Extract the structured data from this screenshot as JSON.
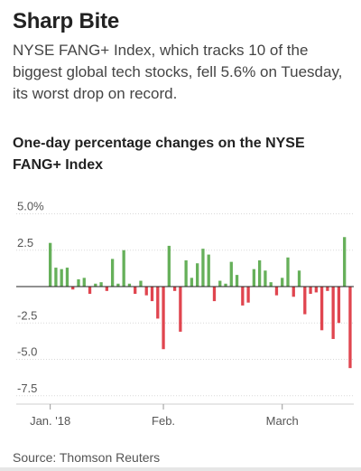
{
  "header": {
    "title": "Sharp Bite",
    "subtitle": "NYSE FANG+ Index, which tracks 10 of the biggest global tech stocks, fell 5.6% on Tuesday, its worst drop on record."
  },
  "chart_title": "One-day percentage changes on the NYSE FANG+ Index",
  "source": "Source: Thomson Reuters",
  "colors": {
    "positive": "#66b05a",
    "negative": "#e0454f",
    "grid": "#d9d9d9",
    "zero_line": "#222222"
  },
  "chart_data": {
    "type": "bar",
    "title": "One-day percentage changes on the NYSE FANG+ Index",
    "xlabel": "",
    "ylabel": "",
    "ylim": [
      -7.5,
      5.0
    ],
    "yticks": [
      "5.0%",
      "2.5",
      "0",
      "-2.5",
      "-5.0",
      "-7.5"
    ],
    "ytick_values": [
      5.0,
      2.5,
      0,
      -2.5,
      -5.0,
      -7.5
    ],
    "xticks": [
      "Jan. '18",
      "Feb.",
      "March"
    ],
    "xtick_indices": [
      0,
      20,
      41
    ],
    "grid": true,
    "values": [
      3.0,
      1.3,
      1.2,
      1.3,
      -0.2,
      0.5,
      0.6,
      -0.5,
      0.2,
      0.3,
      -0.3,
      1.9,
      0.2,
      2.5,
      0.2,
      -0.5,
      0.4,
      -0.6,
      -1.0,
      -2.2,
      -4.3,
      2.8,
      -0.3,
      -3.1,
      1.8,
      0.6,
      1.6,
      2.6,
      2.2,
      -1.0,
      0.4,
      0.2,
      1.7,
      0.8,
      -1.3,
      -1.1,
      1.2,
      1.8,
      1.1,
      0.3,
      -0.6,
      0.6,
      2.0,
      -0.7,
      1.1,
      -1.9,
      -0.5,
      -0.4,
      -3.0,
      -0.3,
      -3.6,
      -2.5,
      3.4,
      -5.6
    ]
  }
}
